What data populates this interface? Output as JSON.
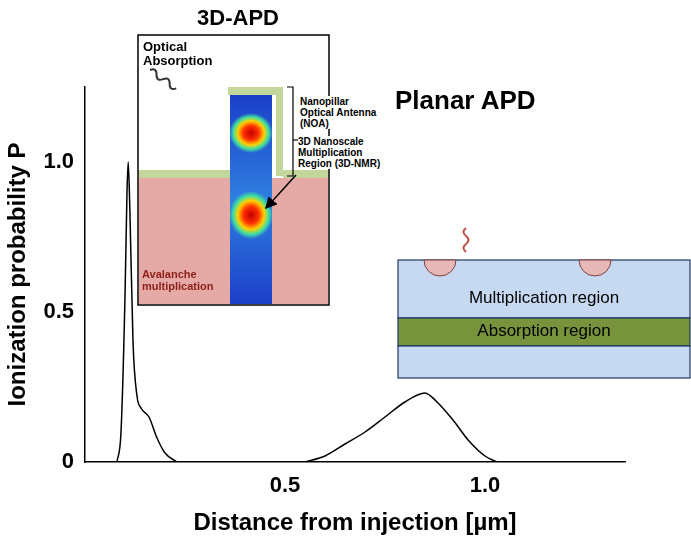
{
  "chart_data": {
    "type": "line",
    "x_label": "Distance from injection [µm]",
    "y_label": "Ionization probability P",
    "xlim": [
      0,
      1.35
    ],
    "ylim": [
      0,
      1.25
    ],
    "xticks": [
      0.5,
      {
        "value": 1,
        "label": "1.0"
      }
    ],
    "yticks": [
      0,
      0.5,
      {
        "value": 1,
        "label": "1.0"
      }
    ],
    "grid": false,
    "series": [
      {
        "color": "#000000",
        "x": [
          0.08,
          0.09,
          0.1,
          0.105,
          0.108,
          0.112,
          0.12,
          0.13,
          0.14,
          0.16,
          0.18,
          0.2,
          0.23
        ],
        "values": [
          0,
          0.1,
          0.55,
          0.9,
          1.0,
          0.85,
          0.4,
          0.22,
          0.18,
          0.15,
          0.08,
          0.03,
          0
        ]
      },
      {
        "color": "#000000",
        "x": [
          0.55,
          0.6,
          0.65,
          0.7,
          0.75,
          0.8,
          0.85,
          0.88,
          0.92,
          0.96,
          1.0,
          1.03
        ],
        "values": [
          0,
          0.02,
          0.06,
          0.1,
          0.15,
          0.2,
          0.23,
          0.2,
          0.14,
          0.07,
          0.02,
          0
        ]
      }
    ]
  },
  "diagrams": {
    "3d_apd": {
      "title": "3D-APD",
      "labels": {
        "optical_absorption": "Optical Absorption",
        "antenna": "Nanopillar Optical Antenna (NOA)",
        "multiplication_region": "3D Nanoscale Multiplication Region (3D-NMR)",
        "avalanche": "Avalanche multiplication"
      }
    },
    "planar_apd": {
      "title": "Planar APD",
      "layers": [
        "Multiplication region",
        "Absorption region"
      ]
    }
  }
}
